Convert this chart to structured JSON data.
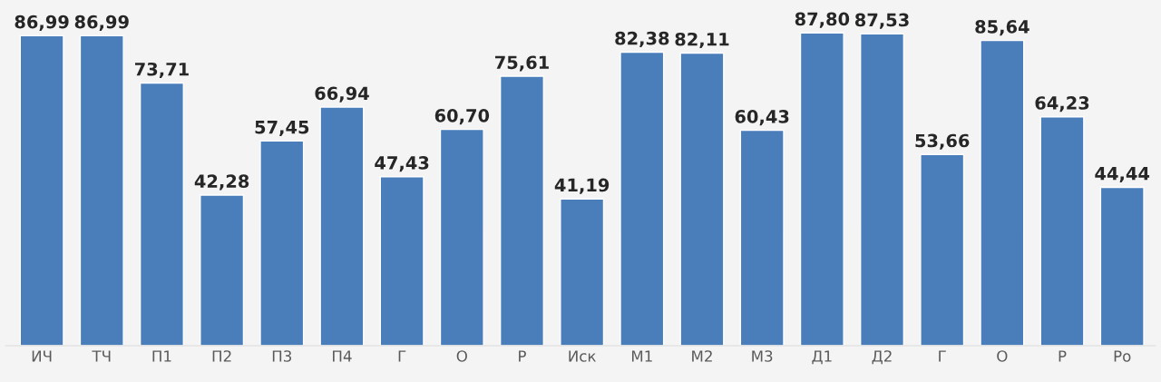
{
  "chart_data": {
    "type": "bar",
    "categories": [
      "ИЧ",
      "ТЧ",
      "П1",
      "П2",
      "П3",
      "П4",
      "Г",
      "О",
      "Р",
      "Иск",
      "М1",
      "М2",
      "М3",
      "Д1",
      "Д2",
      "Г",
      "О",
      "Р",
      "Ро"
    ],
    "values": [
      86.99,
      86.99,
      73.71,
      42.28,
      57.45,
      66.94,
      47.43,
      60.7,
      75.61,
      41.19,
      82.38,
      82.11,
      60.43,
      87.8,
      87.53,
      53.66,
      85.64,
      64.23,
      44.44
    ],
    "value_labels": [
      "86,99",
      "86,99",
      "73,71",
      "42,28",
      "57,45",
      "66,94",
      "47,43",
      "60,70",
      "75,61",
      "41,19",
      "82,38",
      "82,11",
      "60,43",
      "87,80",
      "87,53",
      "53,66",
      "85,64",
      "64,23",
      "44,44"
    ],
    "color": "#4a7ebb",
    "tick_labels": "x",
    "grid": false,
    "legend": false
  }
}
